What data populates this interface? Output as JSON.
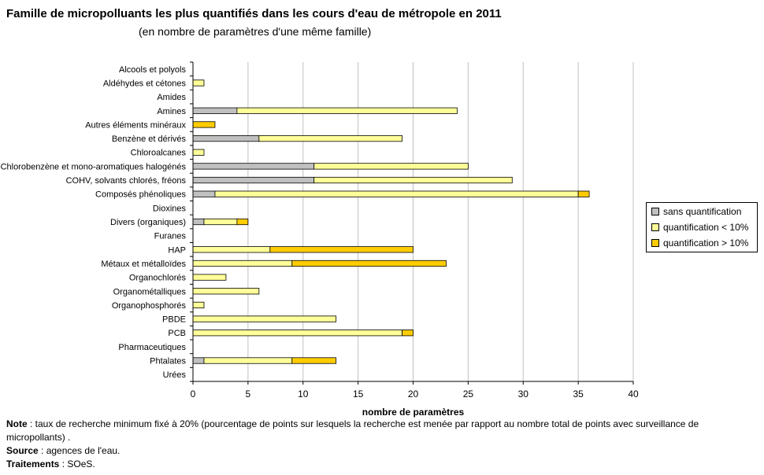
{
  "title": "Famille de micropolluants les plus quantifiés dans les cours d'eau de métropole en 2011",
  "subtitle": "(en nombre de paramètres d'une même famille)",
  "chart_data": {
    "type": "bar",
    "orientation": "horizontal",
    "stacked": true,
    "categories": [
      "Alcools et polyols",
      "Aldéhydes et cétones",
      "Amides",
      "Amines",
      "Autres éléments minéraux",
      "Benzène et dérivés",
      "Chloroalcanes",
      "Chlorobenzène et mono-aromatiques halogénés",
      "COHV, solvants chlorés, fréons",
      "Composés phénoliques",
      "Dioxines",
      "Divers (organiques)",
      "Furanes",
      "HAP",
      "Métaux et métalloïdes",
      "Organochlorés",
      "Organométalliques",
      "Organophosphorés",
      "PBDE",
      "PCB",
      "Pharmaceutiques",
      "Phtalates",
      "Urées"
    ],
    "series": [
      {
        "name": "sans quantification",
        "color": "#c0c0c0",
        "values": [
          0,
          0,
          0,
          4,
          0,
          6,
          0,
          11,
          11,
          2,
          0,
          1,
          0,
          0,
          0,
          0,
          0,
          0,
          0,
          0,
          0,
          1,
          0
        ]
      },
      {
        "name": "quantification < 10%",
        "color": "#ffff99",
        "values": [
          0,
          1,
          0,
          20,
          0,
          13,
          1,
          14,
          18,
          33,
          0,
          3,
          0,
          7,
          9,
          3,
          6,
          1,
          13,
          19,
          0,
          8,
          0
        ]
      },
      {
        "name": "quantification > 10%",
        "color": "#ffcc00",
        "values": [
          0,
          0,
          0,
          0,
          2,
          0,
          0,
          0,
          0,
          1,
          0,
          1,
          0,
          13,
          14,
          0,
          0,
          0,
          0,
          1,
          0,
          4,
          0
        ]
      }
    ],
    "xlabel": "nombre de paramètres",
    "xlim": [
      0,
      40
    ],
    "xticks": [
      "0",
      "5",
      "10",
      "15",
      "20",
      "25",
      "30",
      "35",
      "40"
    ],
    "grid": true,
    "legend_position": "right"
  },
  "notes": {
    "note_label": "Note",
    "note_text": " : taux de recherche minimum fixé à 20% (pourcentage de points sur lesquels la recherche est menée par rapport au nombre total de points avec surveillance de micropollants) .",
    "source_label": "Source",
    "source_text": " : agences de l'eau.",
    "traitements_label": "Traitements",
    "traitements_text": " : SOeS."
  }
}
